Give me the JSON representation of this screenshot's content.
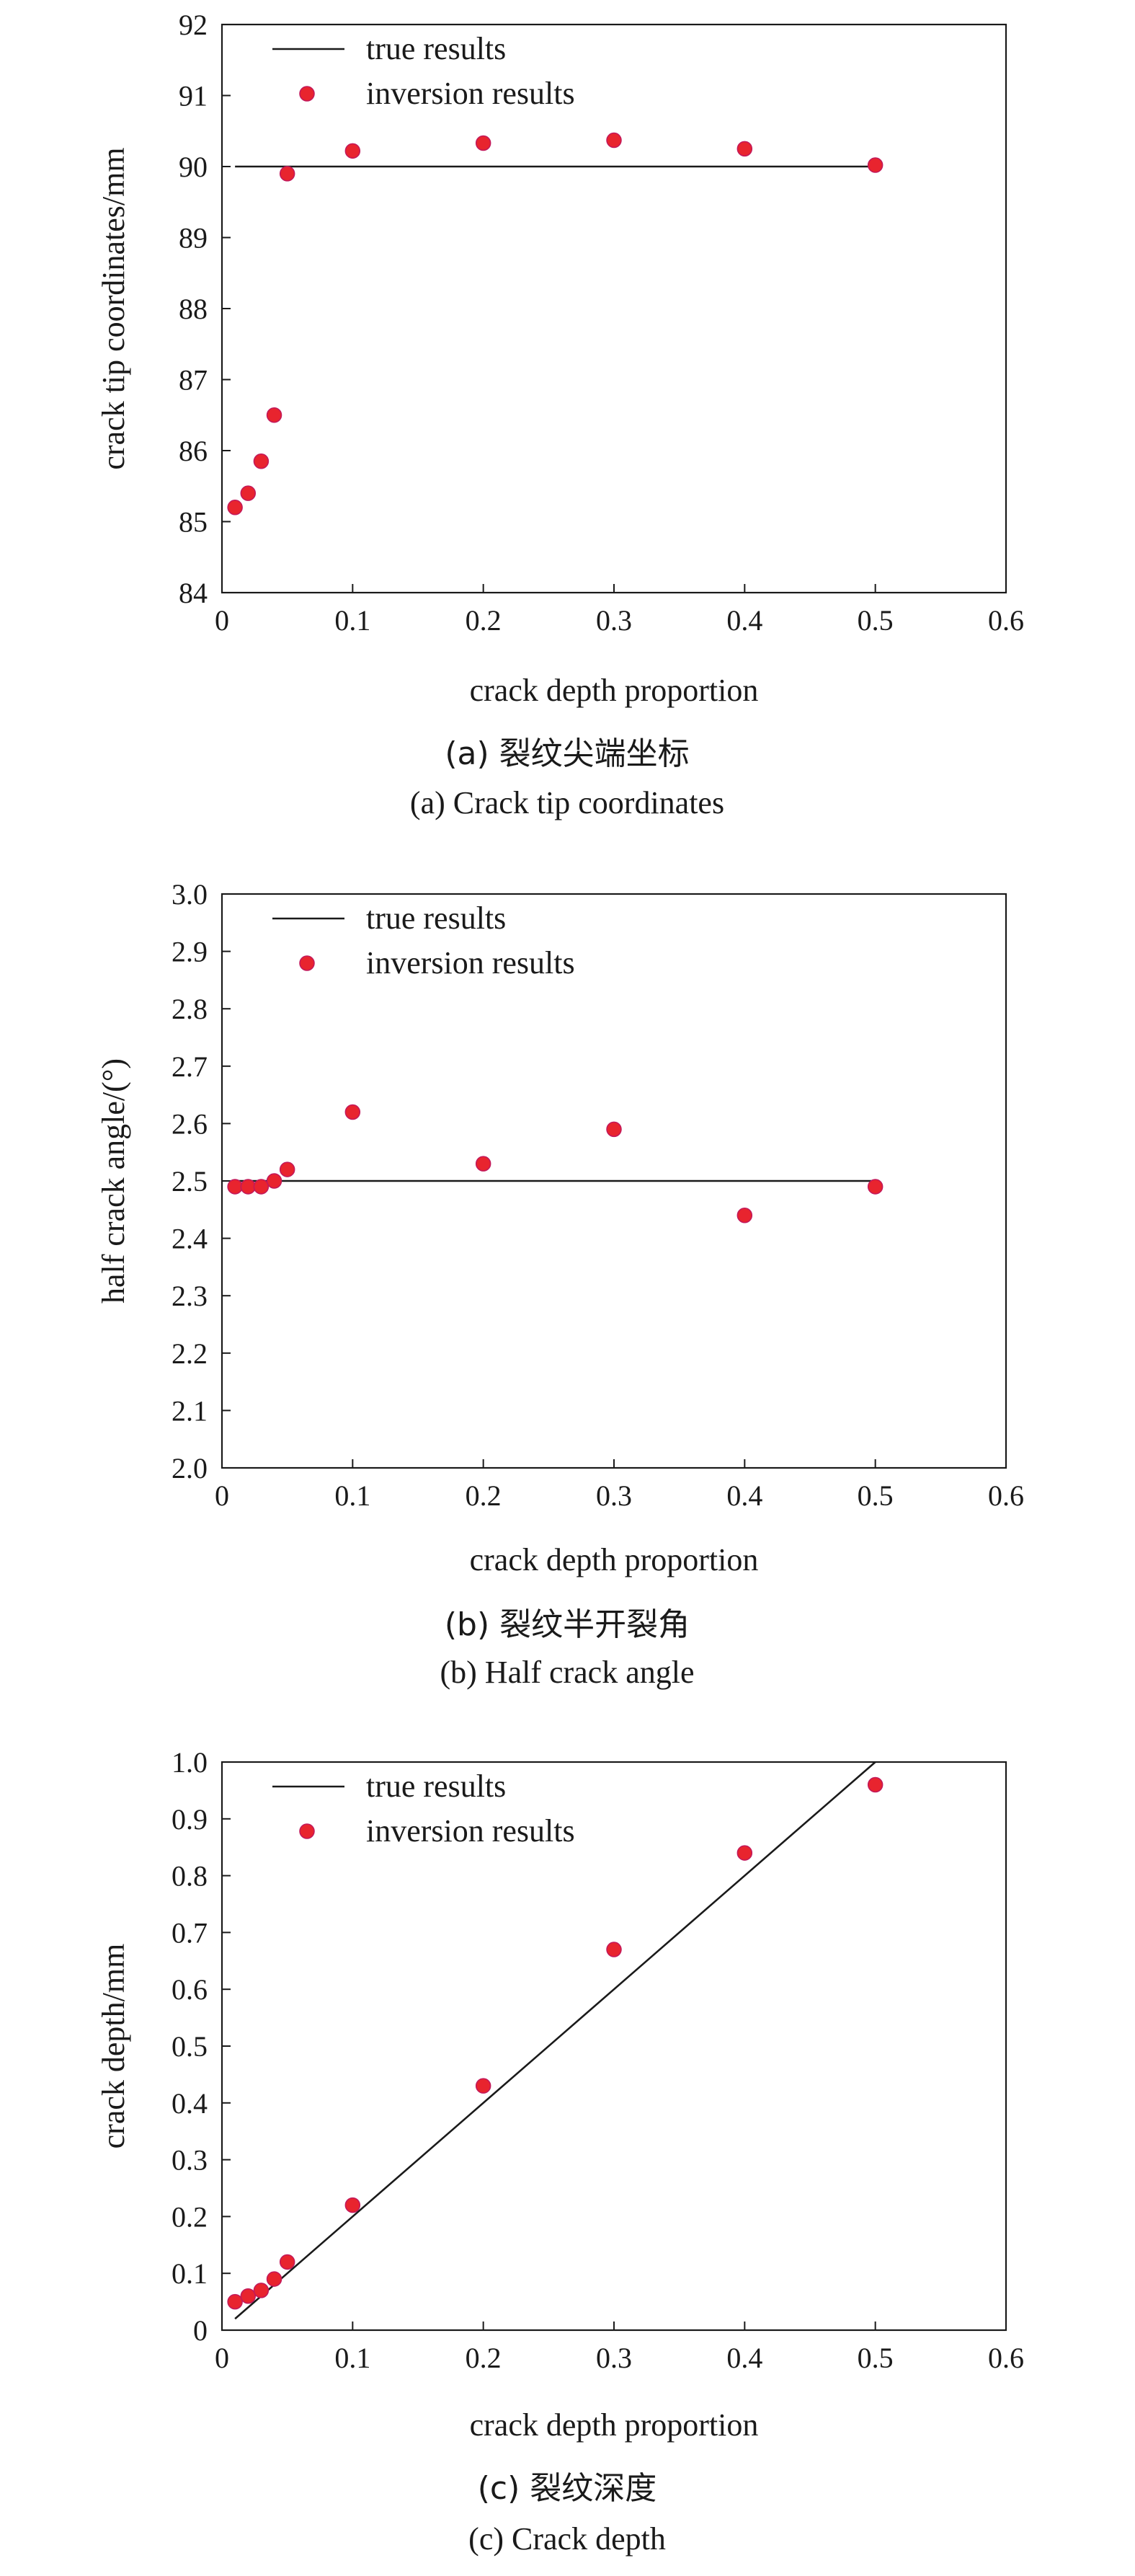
{
  "chart_data": [
    {
      "type": "scatter",
      "caption_zh": "(a) 裂纹尖端坐标",
      "caption_en": "(a) Crack tip coordinates",
      "xlabel": "crack depth proportion",
      "ylabel": "crack tip coordinates/mm",
      "xlim": [
        0,
        0.6
      ],
      "ylim": [
        84,
        92
      ],
      "xticks": [
        "0",
        "0.1",
        "0.2",
        "0.3",
        "0.4",
        "0.5",
        "0.6"
      ],
      "yticks": [
        "84",
        "85",
        "86",
        "87",
        "88",
        "89",
        "90",
        "91",
        "92"
      ],
      "grid": false,
      "legend_position": "top-left",
      "legend": [
        "true results",
        "inversion results"
      ],
      "line_series": {
        "name": "true results",
        "x": [
          0.01,
          0.5
        ],
        "y": [
          90,
          90
        ]
      },
      "point_series": {
        "name": "inversion results",
        "x": [
          0.01,
          0.02,
          0.03,
          0.04,
          0.05,
          0.1,
          0.2,
          0.3,
          0.4,
          0.5
        ],
        "y": [
          85.2,
          85.4,
          85.85,
          86.5,
          89.9,
          90.22,
          90.33,
          90.37,
          90.25,
          90.02
        ]
      }
    },
    {
      "type": "scatter",
      "caption_zh": "(b) 裂纹半开裂角",
      "caption_en": "(b) Half crack angle",
      "xlabel": "crack depth proportion",
      "ylabel": "half crack angle/(°)",
      "xlim": [
        0,
        0.6
      ],
      "ylim": [
        2.0,
        3.0
      ],
      "xticks": [
        "0",
        "0.1",
        "0.2",
        "0.3",
        "0.4",
        "0.5",
        "0.6"
      ],
      "yticks": [
        "2.0",
        "2.1",
        "2.2",
        "2.3",
        "2.4",
        "2.5",
        "2.6",
        "2.7",
        "2.8",
        "2.9",
        "3.0"
      ],
      "grid": false,
      "legend_position": "top-left",
      "legend": [
        "true results",
        "inversion results"
      ],
      "line_series": {
        "name": "true results",
        "x": [
          0.01,
          0.5
        ],
        "y": [
          2.5,
          2.5
        ]
      },
      "point_series": {
        "name": "inversion results",
        "x": [
          0.01,
          0.02,
          0.03,
          0.04,
          0.05,
          0.1,
          0.2,
          0.3,
          0.4,
          0.5
        ],
        "y": [
          2.49,
          2.49,
          2.49,
          2.5,
          2.52,
          2.62,
          2.53,
          2.59,
          2.44,
          2.49
        ]
      }
    },
    {
      "type": "scatter",
      "caption_zh": "(c) 裂纹深度",
      "caption_en": "(c) Crack depth",
      "xlabel": "crack depth proportion",
      "ylabel": "crack depth/mm",
      "xlim": [
        0,
        0.6
      ],
      "ylim": [
        0,
        1.0
      ],
      "xticks": [
        "0",
        "0.1",
        "0.2",
        "0.3",
        "0.4",
        "0.5",
        "0.6"
      ],
      "yticks": [
        "0",
        "0.1",
        "0.2",
        "0.3",
        "0.4",
        "0.5",
        "0.6",
        "0.7",
        "0.8",
        "0.9",
        "1.0"
      ],
      "grid": false,
      "legend_position": "top-left",
      "legend": [
        "true results",
        "inversion results"
      ],
      "line_series": {
        "name": "true results",
        "x": [
          0.01,
          0.5
        ],
        "y": [
          0.02,
          1.0
        ]
      },
      "point_series": {
        "name": "inversion results",
        "x": [
          0.01,
          0.02,
          0.03,
          0.04,
          0.05,
          0.1,
          0.2,
          0.3,
          0.4,
          0.5
        ],
        "y": [
          0.05,
          0.06,
          0.07,
          0.09,
          0.12,
          0.22,
          0.43,
          0.67,
          0.84,
          0.96
        ]
      }
    }
  ],
  "colors": {
    "marker_fill": "#e8242e",
    "marker_edge": "#c2185b",
    "line": "#1a1a1a",
    "axis": "#1a1a1a"
  }
}
